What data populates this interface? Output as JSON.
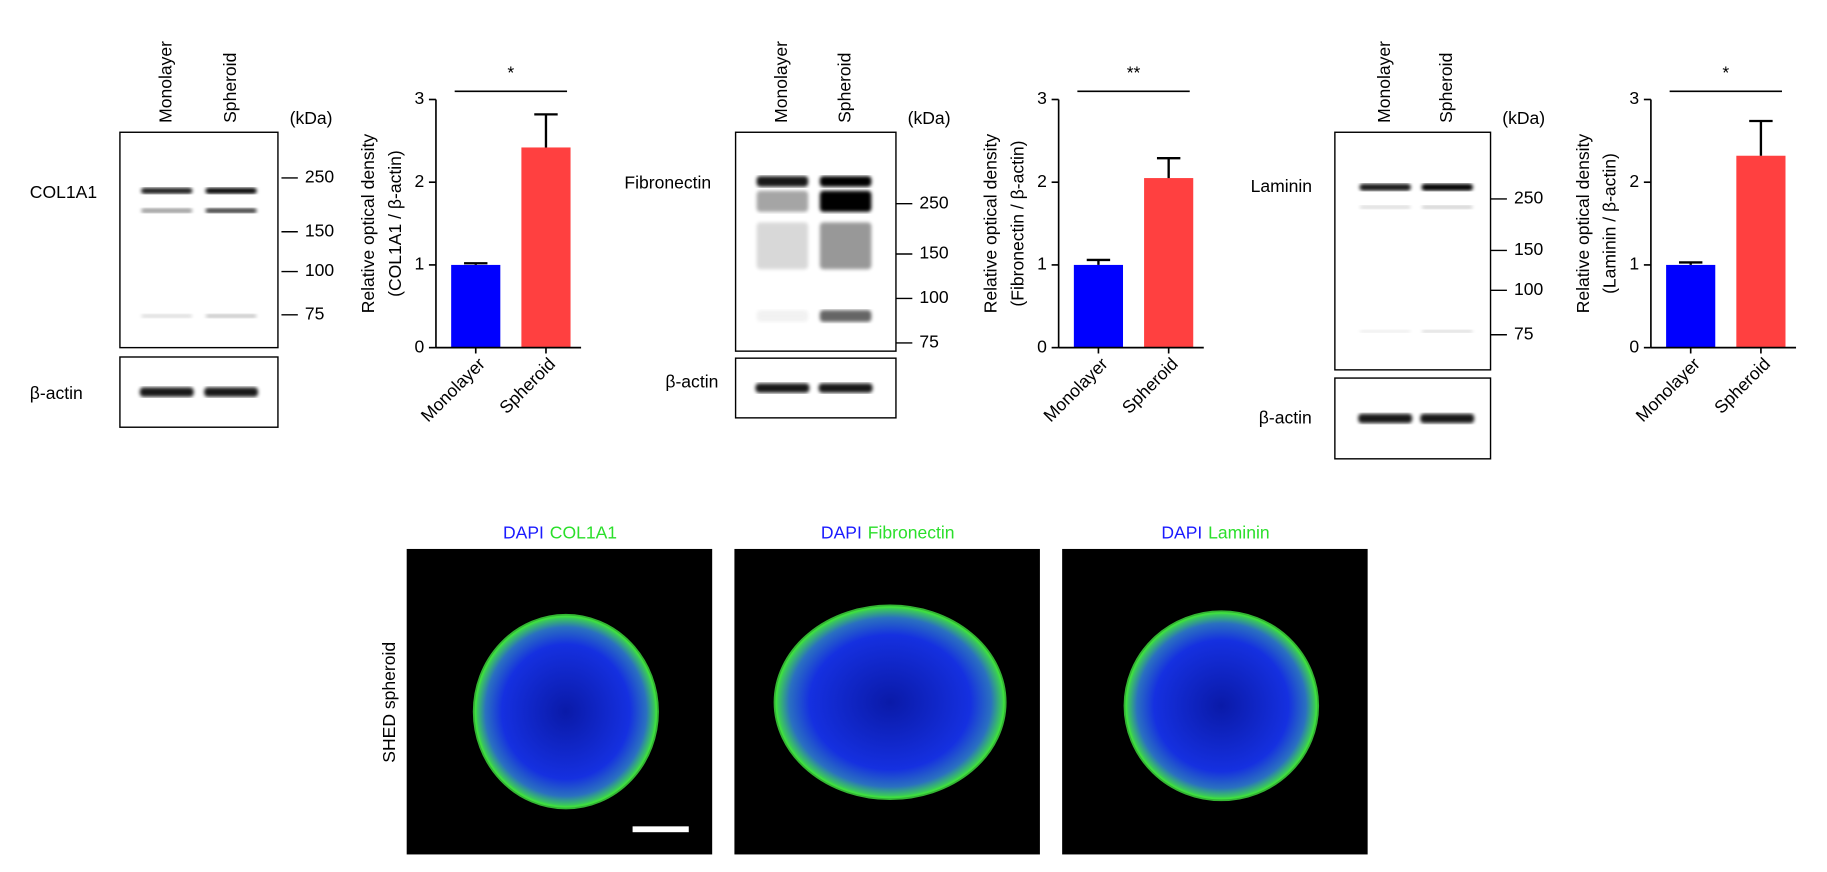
{
  "chart_data": [
    {
      "type": "bar",
      "categories": [
        "Monolayer",
        "Spheroid"
      ],
      "values": [
        1.0,
        2.42
      ],
      "errors": [
        0.02,
        0.4
      ],
      "colors": [
        "#0000ff",
        "#ff4040"
      ],
      "ylabel": [
        "Relative optical density",
        "(COL1A1 / β-actin)"
      ],
      "ylim": [
        0,
        3
      ],
      "yticks": [
        0,
        1,
        2,
        3
      ],
      "significance": "*"
    },
    {
      "type": "bar",
      "categories": [
        "Monolayer",
        "Spheroid"
      ],
      "values": [
        1.0,
        2.05
      ],
      "errors": [
        0.06,
        0.24
      ],
      "colors": [
        "#0000ff",
        "#ff4040"
      ],
      "ylabel": [
        "Relative optical density",
        "(Fibronectin / β-actin)"
      ],
      "ylim": [
        0,
        3
      ],
      "yticks": [
        0,
        1,
        2,
        3
      ],
      "significance": "**"
    },
    {
      "type": "bar",
      "categories": [
        "Monolayer",
        "Spheroid"
      ],
      "values": [
        1.0,
        2.32
      ],
      "errors": [
        0.03,
        0.42
      ],
      "colors": [
        "#0000ff",
        "#ff4040"
      ],
      "ylabel": [
        "Relative optical density",
        "(Laminin / β-actin)"
      ],
      "ylim": [
        0,
        3
      ],
      "yticks": [
        0,
        1,
        2,
        3
      ],
      "significance": "*"
    }
  ],
  "blots": [
    {
      "protein": "COL1A1",
      "control": "β-actin",
      "lanes": [
        "Monolayer",
        "Spheroid"
      ],
      "unit": "(kDa)",
      "markers": [
        250,
        150,
        100,
        75
      ]
    },
    {
      "protein": "Fibronectin",
      "control": "β-actin",
      "lanes": [
        "Monolayer",
        "Spheroid"
      ],
      "unit": "(kDa)",
      "markers": [
        250,
        150,
        100,
        75
      ]
    },
    {
      "protein": "Laminin",
      "control": "β-actin",
      "lanes": [
        "Monolayer",
        "Spheroid"
      ],
      "unit": "(kDa)",
      "markers": [
        250,
        150,
        100,
        75
      ]
    }
  ],
  "images": {
    "row_label": "SHED spheroid",
    "panels": [
      {
        "stain": "DAPI",
        "target": "COL1A1"
      },
      {
        "stain": "DAPI",
        "target": "Fibronectin"
      },
      {
        "stain": "DAPI",
        "target": "Laminin"
      }
    ]
  }
}
